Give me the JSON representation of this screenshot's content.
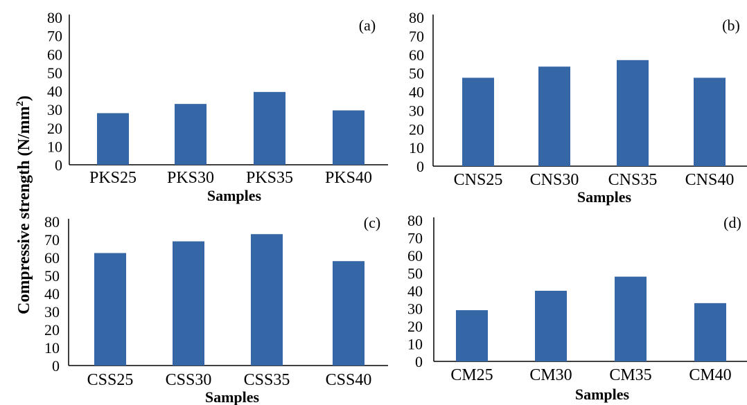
{
  "y_axis_label": "Compressive strength (N/mm",
  "y_axis_label_sup": "2",
  "y_axis_label_close": ")",
  "chart_data": [
    {
      "type": "bar",
      "panel": "(a)",
      "categories": [
        "PKS25",
        "PKS30",
        "PKS35",
        "PKS40"
      ],
      "values": [
        28,
        33,
        39.5,
        29.5
      ],
      "xlabel": "Samples",
      "ylim": [
        0,
        80
      ],
      "yticks": [
        0,
        10,
        20,
        30,
        40,
        50,
        60,
        70,
        80
      ],
      "grid": false,
      "color": "#3566a6"
    },
    {
      "type": "bar",
      "panel": "(b)",
      "categories": [
        "CNS25",
        "CNS30",
        "CNS35",
        "CNS40"
      ],
      "values": [
        47.5,
        53.5,
        57,
        47.5
      ],
      "xlabel": "Samples",
      "ylim": [
        0,
        80
      ],
      "yticks": [
        0,
        10,
        20,
        30,
        40,
        50,
        60,
        70,
        80
      ],
      "grid": false,
      "color": "#3566a6"
    },
    {
      "type": "bar",
      "panel": "(c)",
      "categories": [
        "CSS25",
        "CSS30",
        "CSS35",
        "CSS40"
      ],
      "values": [
        62.5,
        69,
        73,
        58
      ],
      "xlabel": "Samples",
      "ylim": [
        0,
        80
      ],
      "yticks": [
        0,
        10,
        20,
        30,
        40,
        50,
        60,
        70,
        80
      ],
      "grid": false,
      "color": "#3566a6"
    },
    {
      "type": "bar",
      "panel": "(d)",
      "categories": [
        "CM25",
        "CM30",
        "CM35",
        "CM40"
      ],
      "values": [
        29,
        40,
        48,
        33
      ],
      "xlabel": "Samples",
      "ylim": [
        0,
        80
      ],
      "yticks": [
        0,
        10,
        20,
        30,
        40,
        50,
        60,
        70,
        80
      ],
      "grid": false,
      "color": "#3566a6"
    }
  ]
}
